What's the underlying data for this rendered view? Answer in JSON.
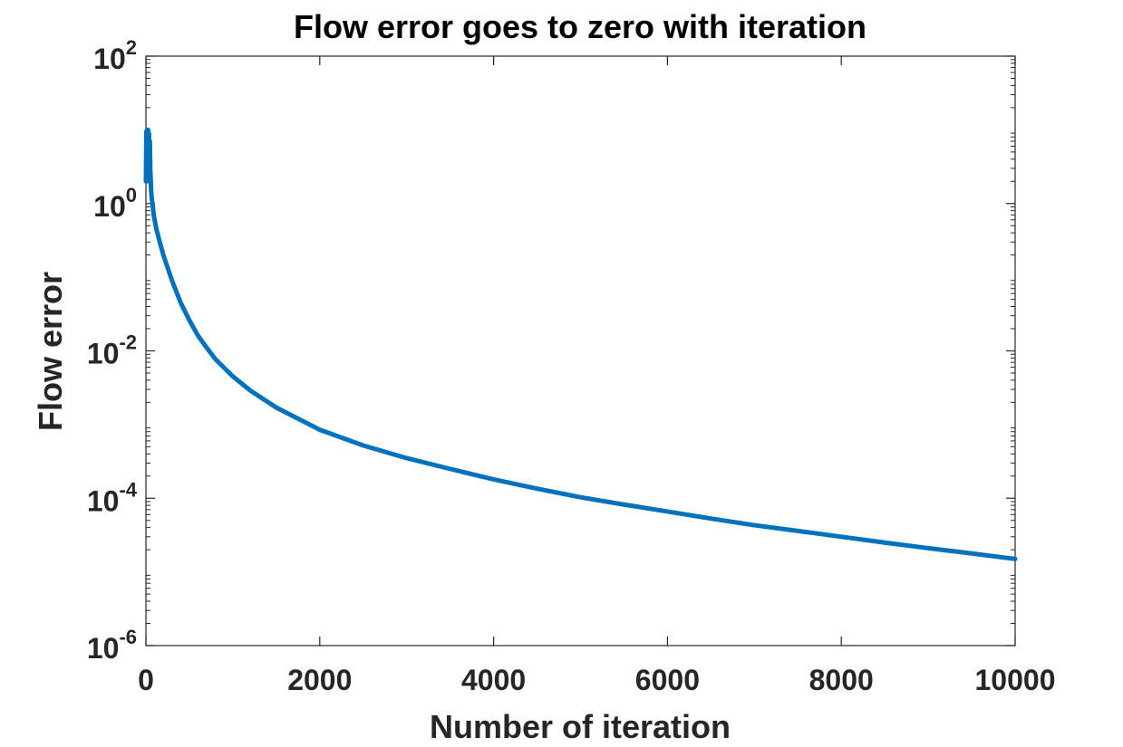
{
  "chart_data": {
    "type": "line",
    "title": "Flow error goes to zero with iteration",
    "xlabel": "Number of iteration",
    "ylabel": "Flow error",
    "xlim": [
      0,
      10000
    ],
    "ylim": [
      1e-06,
      100
    ],
    "yscale": "log",
    "grid": false,
    "x_ticks": [
      0,
      2000,
      4000,
      6000,
      8000,
      10000
    ],
    "x_tick_labels": [
      "0",
      "2000",
      "4000",
      "6000",
      "8000",
      "10000"
    ],
    "y_ticks": [
      {
        "base": "10",
        "exp": "-6",
        "value": 1e-06
      },
      {
        "base": "10",
        "exp": "-4",
        "value": 0.0001
      },
      {
        "base": "10",
        "exp": "-2",
        "value": 0.01
      },
      {
        "base": "10",
        "exp": "0",
        "value": 1
      },
      {
        "base": "10",
        "exp": "2",
        "value": 100
      }
    ],
    "line_color": "#0072BD",
    "series": [
      {
        "x": [
          0,
          5,
          10,
          15,
          20,
          25,
          30,
          35,
          40,
          45,
          50,
          60,
          70,
          80,
          90,
          100,
          120,
          150,
          200,
          300,
          400,
          500,
          600,
          700,
          800,
          1000,
          1200,
          1500,
          2000,
          2500,
          3000,
          3500,
          4000,
          4500,
          5000,
          5500,
          6000,
          6500,
          7000,
          7500,
          8000,
          8500,
          9000,
          9500,
          10000
        ],
        "y": [
          2.0,
          9.5,
          2.0,
          10.0,
          2.0,
          10.0,
          2.2,
          9.0,
          2.5,
          7.0,
          3.0,
          1.5,
          1.1,
          0.9,
          0.7,
          0.6,
          0.45,
          0.33,
          0.2,
          0.09,
          0.045,
          0.026,
          0.016,
          0.011,
          0.0077,
          0.0045,
          0.0029,
          0.0017,
          0.00085,
          0.00052,
          0.00035,
          0.00025,
          0.00018,
          0.000135,
          0.000103,
          8.2e-05,
          6.6e-05,
          5.3e-05,
          4.3e-05,
          3.6e-05,
          3e-05,
          2.5e-05,
          2.1e-05,
          1.78e-05,
          1.5e-05
        ]
      }
    ]
  }
}
